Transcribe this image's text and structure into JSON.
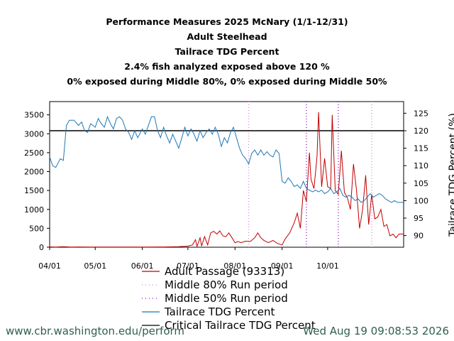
{
  "titles": [
    "Performance Measures 2025 McNary (1/1-12/31)",
    "Adult Steelhead",
    "Tailrace TDG Percent",
    "2.4% fish analyzed exposed above 120 %",
    "0% exposed during Middle 80%, 0% exposed during Middle 50%"
  ],
  "footer": {
    "left": "www.cbr.washington.edu/perform",
    "right": "Wed Aug 19 09:08:53 2026"
  },
  "colors": {
    "passage": "#c00000",
    "tdg": "#1f77b4",
    "critical": "#000000",
    "middle80": "#d08ad0",
    "middle50": "#9010c0",
    "footer": "#2f5f4f"
  },
  "chart_data": {
    "type": "line",
    "x_range": [
      "2025-04-01",
      "2025-11-20"
    ],
    "x_ticks": [
      {
        "date": "2025-04-01",
        "label": "04/01"
      },
      {
        "date": "2025-05-01",
        "label": "05/01"
      },
      {
        "date": "2025-06-01",
        "label": "06/01"
      },
      {
        "date": "2025-07-01",
        "label": "07/01"
      },
      {
        "date": "2025-08-01",
        "label": "08/01"
      },
      {
        "date": "2025-09-01",
        "label": "09/01"
      },
      {
        "date": "2025-10-01",
        "label": "10/01"
      }
    ],
    "y_left": {
      "lim": [
        0,
        3850
      ],
      "ticks": [
        0,
        500,
        1000,
        1500,
        2000,
        2500,
        3000,
        3500
      ]
    },
    "y_right": {
      "lim": [
        86.67,
        128.33
      ],
      "ticks": [
        90,
        95,
        100,
        105,
        110,
        115,
        120,
        125
      ],
      "label": "Tailrace TDG Percent (%)"
    },
    "critical_tdg": 120,
    "middle80_dates": [
      "2025-08-10",
      "2025-10-30"
    ],
    "middle50_dates": [
      "2025-09-17",
      "2025-10-08"
    ],
    "legend": [
      {
        "key": "passage",
        "label": "Adult Passage (93313)",
        "style": "solid"
      },
      {
        "key": "middle80",
        "label": "Middle 80% Run period",
        "style": "dotted"
      },
      {
        "key": "middle50",
        "label": "Middle 50% Run period",
        "style": "dotted"
      },
      {
        "key": "tdg",
        "label": "Tailrace TDG Percent",
        "style": "solid"
      },
      {
        "key": "critical",
        "label": "Critical Tailrace TDG Percent",
        "style": "solid"
      }
    ],
    "series": [
      {
        "name": "Adult Passage (93313)",
        "axis": "left",
        "points": [
          [
            "2025-04-01",
            10
          ],
          [
            "2025-04-05",
            5
          ],
          [
            "2025-04-10",
            15
          ],
          [
            "2025-04-15",
            5
          ],
          [
            "2025-04-20",
            8
          ],
          [
            "2025-05-01",
            3
          ],
          [
            "2025-05-15",
            5
          ],
          [
            "2025-06-01",
            3
          ],
          [
            "2025-06-15",
            8
          ],
          [
            "2025-06-25",
            15
          ],
          [
            "2025-07-01",
            30
          ],
          [
            "2025-07-04",
            60
          ],
          [
            "2025-07-06",
            200
          ],
          [
            "2025-07-07",
            20
          ],
          [
            "2025-07-09",
            250
          ],
          [
            "2025-07-10",
            30
          ],
          [
            "2025-07-12",
            280
          ],
          [
            "2025-07-14",
            60
          ],
          [
            "2025-07-16",
            380
          ],
          [
            "2025-07-18",
            420
          ],
          [
            "2025-07-20",
            350
          ],
          [
            "2025-07-22",
            430
          ],
          [
            "2025-07-24",
            300
          ],
          [
            "2025-07-26",
            280
          ],
          [
            "2025-07-28",
            380
          ],
          [
            "2025-07-30",
            250
          ],
          [
            "2025-08-01",
            120
          ],
          [
            "2025-08-03",
            150
          ],
          [
            "2025-08-05",
            120
          ],
          [
            "2025-08-08",
            160
          ],
          [
            "2025-08-11",
            150
          ],
          [
            "2025-08-14",
            250
          ],
          [
            "2025-08-16",
            380
          ],
          [
            "2025-08-18",
            250
          ],
          [
            "2025-08-20",
            180
          ],
          [
            "2025-08-23",
            120
          ],
          [
            "2025-08-26",
            180
          ],
          [
            "2025-08-29",
            100
          ],
          [
            "2025-09-01",
            60
          ],
          [
            "2025-09-03",
            220
          ],
          [
            "2025-09-06",
            380
          ],
          [
            "2025-09-09",
            650
          ],
          [
            "2025-09-11",
            900
          ],
          [
            "2025-09-13",
            500
          ],
          [
            "2025-09-15",
            1500
          ],
          [
            "2025-09-17",
            1200
          ],
          [
            "2025-09-19",
            2500
          ],
          [
            "2025-09-20",
            1800
          ],
          [
            "2025-09-22",
            1550
          ],
          [
            "2025-09-24",
            2400
          ],
          [
            "2025-09-25",
            3570
          ],
          [
            "2025-09-27",
            1600
          ],
          [
            "2025-09-29",
            2350
          ],
          [
            "2025-10-01",
            1600
          ],
          [
            "2025-10-03",
            1550
          ],
          [
            "2025-10-04",
            3500
          ],
          [
            "2025-10-06",
            1500
          ],
          [
            "2025-10-08",
            1400
          ],
          [
            "2025-10-10",
            2550
          ],
          [
            "2025-10-12",
            1450
          ],
          [
            "2025-10-14",
            1300
          ],
          [
            "2025-10-16",
            1000
          ],
          [
            "2025-10-18",
            2200
          ],
          [
            "2025-10-20",
            1500
          ],
          [
            "2025-10-22",
            500
          ],
          [
            "2025-10-24",
            1000
          ],
          [
            "2025-10-26",
            1900
          ],
          [
            "2025-10-28",
            600
          ],
          [
            "2025-10-30",
            1400
          ],
          [
            "2025-11-01",
            750
          ],
          [
            "2025-11-03",
            800
          ],
          [
            "2025-11-05",
            1000
          ],
          [
            "2025-11-07",
            550
          ],
          [
            "2025-11-09",
            600
          ],
          [
            "2025-11-11",
            300
          ],
          [
            "2025-11-13",
            350
          ],
          [
            "2025-11-15",
            250
          ],
          [
            "2025-11-17",
            350
          ],
          [
            "2025-11-20",
            350
          ]
        ]
      },
      {
        "name": "Tailrace TDG Percent",
        "axis": "right",
        "points": [
          [
            "2025-04-01",
            112.5
          ],
          [
            "2025-04-03",
            110
          ],
          [
            "2025-04-05",
            109.5
          ],
          [
            "2025-04-08",
            112
          ],
          [
            "2025-04-10",
            111.5
          ],
          [
            "2025-04-12",
            121.5
          ],
          [
            "2025-04-14",
            123
          ],
          [
            "2025-04-17",
            123
          ],
          [
            "2025-04-20",
            121.5
          ],
          [
            "2025-04-22",
            122.5
          ],
          [
            "2025-04-24",
            120
          ],
          [
            "2025-04-26",
            119.5
          ],
          [
            "2025-04-28",
            122
          ],
          [
            "2025-05-01",
            121
          ],
          [
            "2025-05-03",
            123.5
          ],
          [
            "2025-05-05",
            122
          ],
          [
            "2025-05-07",
            121
          ],
          [
            "2025-05-09",
            124
          ],
          [
            "2025-05-11",
            122
          ],
          [
            "2025-05-13",
            120.5
          ],
          [
            "2025-05-15",
            123.5
          ],
          [
            "2025-05-17",
            124
          ],
          [
            "2025-05-19",
            123
          ],
          [
            "2025-05-21",
            120.5
          ],
          [
            "2025-05-23",
            119.5
          ],
          [
            "2025-05-25",
            117.5
          ],
          [
            "2025-05-27",
            120
          ],
          [
            "2025-05-29",
            118
          ],
          [
            "2025-06-01",
            120.5
          ],
          [
            "2025-06-03",
            119
          ],
          [
            "2025-06-05",
            121.5
          ],
          [
            "2025-06-07",
            124
          ],
          [
            "2025-06-09",
            124
          ],
          [
            "2025-06-11",
            120
          ],
          [
            "2025-06-13",
            118
          ],
          [
            "2025-06-15",
            121
          ],
          [
            "2025-06-17",
            118.5
          ],
          [
            "2025-06-19",
            116.5
          ],
          [
            "2025-06-21",
            119
          ],
          [
            "2025-06-23",
            117
          ],
          [
            "2025-06-25",
            115
          ],
          [
            "2025-06-27",
            118
          ],
          [
            "2025-06-29",
            121
          ],
          [
            "2025-07-01",
            118.5
          ],
          [
            "2025-07-03",
            120.5
          ],
          [
            "2025-07-05",
            119
          ],
          [
            "2025-07-07",
            117
          ],
          [
            "2025-07-09",
            120
          ],
          [
            "2025-07-11",
            118
          ],
          [
            "2025-07-13",
            119.5
          ],
          [
            "2025-07-15",
            120.5
          ],
          [
            "2025-07-17",
            119
          ],
          [
            "2025-07-19",
            121
          ],
          [
            "2025-07-21",
            119
          ],
          [
            "2025-07-23",
            115.5
          ],
          [
            "2025-07-25",
            118
          ],
          [
            "2025-07-27",
            116.5
          ],
          [
            "2025-07-29",
            119.5
          ],
          [
            "2025-07-31",
            121
          ],
          [
            "2025-08-02",
            118
          ],
          [
            "2025-08-04",
            115
          ],
          [
            "2025-08-06",
            113
          ],
          [
            "2025-08-08",
            112
          ],
          [
            "2025-08-10",
            110.5
          ],
          [
            "2025-08-12",
            113.5
          ],
          [
            "2025-08-14",
            114.5
          ],
          [
            "2025-08-16",
            113
          ],
          [
            "2025-08-18",
            114.5
          ],
          [
            "2025-08-20",
            113
          ],
          [
            "2025-08-22",
            114
          ],
          [
            "2025-08-24",
            113
          ],
          [
            "2025-08-26",
            112.5
          ],
          [
            "2025-08-28",
            114.5
          ],
          [
            "2025-08-30",
            113.5
          ],
          [
            "2025-09-01",
            105.5
          ],
          [
            "2025-09-03",
            105
          ],
          [
            "2025-09-05",
            106.5
          ],
          [
            "2025-09-07",
            105.5
          ],
          [
            "2025-09-09",
            104
          ],
          [
            "2025-09-11",
            104.5
          ],
          [
            "2025-09-13",
            103.5
          ],
          [
            "2025-09-15",
            105.5
          ],
          [
            "2025-09-17",
            103.5
          ],
          [
            "2025-09-19",
            103
          ],
          [
            "2025-09-21",
            102.5
          ],
          [
            "2025-09-23",
            103
          ],
          [
            "2025-09-25",
            102.5
          ],
          [
            "2025-09-27",
            103
          ],
          [
            "2025-09-29",
            102
          ],
          [
            "2025-10-01",
            102.5
          ],
          [
            "2025-10-03",
            103.5
          ],
          [
            "2025-10-05",
            102
          ],
          [
            "2025-10-07",
            102.5
          ],
          [
            "2025-10-09",
            103.5
          ],
          [
            "2025-10-11",
            101.5
          ],
          [
            "2025-10-13",
            101
          ],
          [
            "2025-10-15",
            101.5
          ],
          [
            "2025-10-17",
            101
          ],
          [
            "2025-10-19",
            100
          ],
          [
            "2025-10-21",
            100.5
          ],
          [
            "2025-10-23",
            99.5
          ],
          [
            "2025-10-25",
            100
          ],
          [
            "2025-10-27",
            101
          ],
          [
            "2025-10-29",
            102
          ],
          [
            "2025-10-31",
            101
          ],
          [
            "2025-11-02",
            101.5
          ],
          [
            "2025-11-04",
            102
          ],
          [
            "2025-11-06",
            101.5
          ],
          [
            "2025-11-08",
            100.5
          ],
          [
            "2025-11-10",
            100
          ],
          [
            "2025-11-12",
            99.5
          ],
          [
            "2025-11-14",
            100
          ],
          [
            "2025-11-16",
            99.5
          ],
          [
            "2025-11-20",
            99.5
          ]
        ]
      }
    ]
  }
}
